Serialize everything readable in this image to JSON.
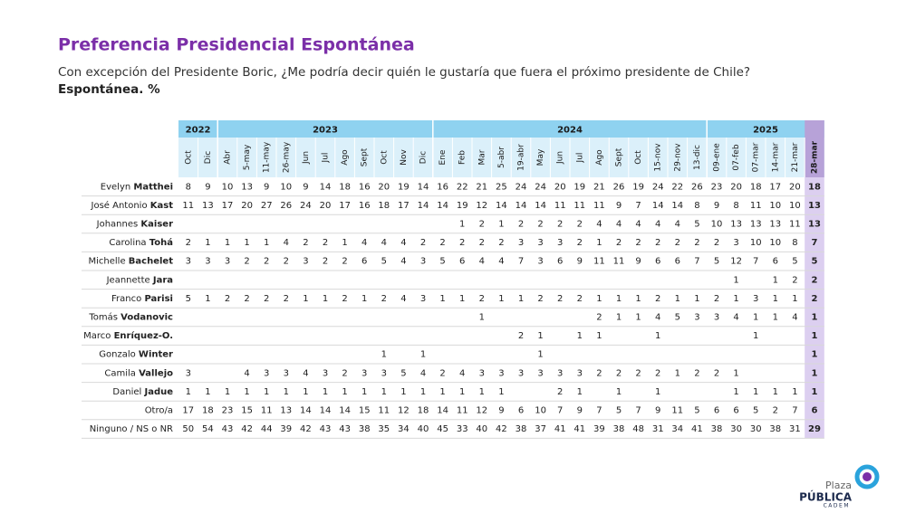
{
  "header": {
    "title": "Preferencia Presidencial Espontánea",
    "subtitle": "Con excepción del Presidente Boric, ¿Me podría decir quién le gustaría que fuera el próximo presidente de Chile?",
    "note": "Espontánea. %"
  },
  "table": {
    "years": [
      {
        "year": "2022",
        "months": [
          "Oct",
          "Dic"
        ]
      },
      {
        "year": "2023",
        "months": [
          "Abr",
          "5-may",
          "11-may",
          "26-may",
          "Jun",
          "Jul",
          "Ago",
          "Sept",
          "Oct",
          "Nov",
          "Dic"
        ]
      },
      {
        "year": "2024",
        "months": [
          "Ene",
          "Feb",
          "Mar",
          "5-abr",
          "19-abr",
          "May",
          "Jun",
          "Jul",
          "Ago",
          "Sept",
          "Oct",
          "15-nov",
          "29-nov",
          "13-dic"
        ]
      },
      {
        "year": "2025",
        "months": [
          "09-ene",
          "07-feb",
          "07-mar",
          "14-mar",
          "21-mar",
          "28-mar"
        ]
      }
    ],
    "rows": [
      {
        "name": [
          "Evelyn",
          "Matthei"
        ],
        "values": [
          8,
          9,
          10,
          13,
          9,
          10,
          9,
          14,
          18,
          16,
          20,
          19,
          14,
          16,
          22,
          21,
          25,
          24,
          24,
          20,
          19,
          21,
          26,
          19,
          24,
          22,
          26,
          23,
          20,
          18,
          17,
          20,
          18
        ]
      },
      {
        "name": [
          "José Antonio",
          "Kast"
        ],
        "values": [
          11,
          13,
          17,
          20,
          27,
          26,
          24,
          20,
          17,
          16,
          18,
          17,
          14,
          14,
          19,
          12,
          14,
          14,
          14,
          11,
          11,
          11,
          9,
          7,
          14,
          14,
          8,
          9,
          8,
          11,
          10,
          10,
          13
        ]
      },
      {
        "name": [
          "Johannes",
          "Kaiser"
        ],
        "values": [
          null,
          null,
          null,
          null,
          null,
          null,
          null,
          null,
          null,
          null,
          null,
          null,
          null,
          null,
          1,
          2,
          1,
          2,
          2,
          2,
          2,
          4,
          4,
          4,
          4,
          4,
          5,
          10,
          13,
          13,
          13,
          11,
          13
        ]
      },
      {
        "name": [
          "Carolina",
          "Tohá"
        ],
        "values": [
          2,
          1,
          1,
          1,
          1,
          4,
          2,
          2,
          1,
          4,
          4,
          4,
          2,
          2,
          2,
          2,
          2,
          3,
          3,
          3,
          2,
          1,
          2,
          2,
          2,
          2,
          2,
          2,
          3,
          10,
          10,
          8,
          7
        ]
      },
      {
        "name": [
          "Michelle",
          "Bachelet"
        ],
        "values": [
          3,
          3,
          3,
          2,
          2,
          2,
          3,
          2,
          2,
          6,
          5,
          4,
          3,
          5,
          6,
          4,
          4,
          7,
          3,
          6,
          9,
          11,
          11,
          9,
          6,
          6,
          7,
          5,
          12,
          7,
          6,
          5,
          5
        ]
      },
      {
        "name": [
          "Jeannette",
          "Jara"
        ],
        "values": [
          null,
          null,
          null,
          null,
          null,
          null,
          null,
          null,
          null,
          null,
          null,
          null,
          null,
          null,
          null,
          null,
          null,
          null,
          null,
          null,
          null,
          null,
          null,
          null,
          null,
          null,
          null,
          null,
          1,
          null,
          1,
          2,
          2
        ]
      },
      {
        "name": [
          "Franco",
          "Parisi"
        ],
        "values": [
          5,
          1,
          2,
          2,
          2,
          2,
          1,
          1,
          2,
          1,
          2,
          4,
          3,
          1,
          1,
          2,
          1,
          1,
          2,
          2,
          2,
          1,
          1,
          1,
          2,
          1,
          1,
          2,
          1,
          3,
          1,
          1,
          2
        ]
      },
      {
        "name": [
          "Tomás",
          "Vodanovic"
        ],
        "values": [
          null,
          null,
          null,
          null,
          null,
          null,
          null,
          null,
          null,
          null,
          null,
          null,
          null,
          null,
          null,
          1,
          null,
          null,
          null,
          null,
          null,
          2,
          1,
          1,
          4,
          5,
          3,
          3,
          4,
          1,
          1,
          4,
          1
        ]
      },
      {
        "name": [
          "Marco",
          "Enríquez-O."
        ],
        "values": [
          null,
          null,
          null,
          null,
          null,
          null,
          null,
          null,
          null,
          null,
          null,
          null,
          null,
          null,
          null,
          null,
          null,
          2,
          1,
          null,
          1,
          1,
          null,
          null,
          1,
          null,
          null,
          null,
          null,
          1,
          null,
          null,
          1
        ]
      },
      {
        "name": [
          "Gonzalo",
          "Winter"
        ],
        "values": [
          null,
          null,
          null,
          null,
          null,
          null,
          null,
          null,
          null,
          null,
          1,
          null,
          1,
          null,
          null,
          null,
          null,
          null,
          1,
          null,
          null,
          null,
          null,
          null,
          null,
          null,
          null,
          null,
          null,
          null,
          null,
          null,
          1
        ]
      },
      {
        "name": [
          "Camila",
          "Vallejo"
        ],
        "values": [
          3,
          null,
          null,
          4,
          3,
          3,
          4,
          3,
          2,
          3,
          3,
          5,
          4,
          2,
          4,
          3,
          3,
          3,
          3,
          3,
          3,
          2,
          2,
          2,
          2,
          1,
          2,
          2,
          1,
          null,
          null,
          null,
          1
        ]
      },
      {
        "name": [
          "Daniel",
          "Jadue"
        ],
        "values": [
          1,
          1,
          1,
          1,
          1,
          1,
          1,
          1,
          1,
          1,
          1,
          1,
          1,
          1,
          1,
          1,
          1,
          null,
          null,
          2,
          1,
          null,
          1,
          null,
          1,
          null,
          null,
          null,
          1,
          1,
          1,
          1,
          1
        ]
      },
      {
        "name": [
          "Otro/a"
        ],
        "values": [
          17,
          18,
          23,
          15,
          11,
          13,
          14,
          14,
          14,
          15,
          11,
          12,
          18,
          14,
          11,
          12,
          9,
          6,
          10,
          7,
          9,
          7,
          5,
          7,
          9,
          11,
          5,
          6,
          6,
          5,
          2,
          7,
          6
        ]
      },
      {
        "name": [
          "Ninguno / NS o NR"
        ],
        "values": [
          50,
          54,
          43,
          42,
          44,
          39,
          42,
          43,
          43,
          38,
          35,
          34,
          40,
          45,
          33,
          40,
          42,
          38,
          37,
          41,
          41,
          39,
          38,
          48,
          31,
          34,
          41,
          38,
          30,
          30,
          38,
          31,
          29
        ]
      }
    ]
  },
  "logo": {
    "top": "Plaza",
    "main": "PÚBLICA",
    "bottom": "CADEM"
  }
}
